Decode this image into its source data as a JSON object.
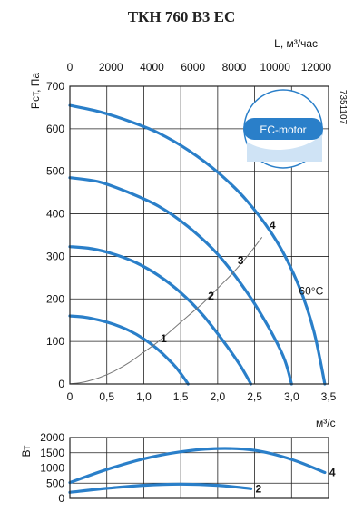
{
  "title": "ТКН 760 В3 ЕС",
  "code": "7351107",
  "badge": {
    "text": "EC-motor",
    "color": "#2a7fc9"
  },
  "chart_data": [
    {
      "type": "line",
      "title": "ТКН 760 В3 ЕС",
      "xlabel": "м³/с",
      "xlim": [
        0,
        3.5
      ],
      "xticks": [
        "0",
        "0,5",
        "1,0",
        "1,5",
        "2,0",
        "2,5",
        "3,0",
        "3,5"
      ],
      "secondary_xlabel": "L, м³/час",
      "secondary_xlim": [
        0,
        12600
      ],
      "secondary_xticks": [
        "0",
        "2000",
        "4000",
        "6000",
        "8000",
        "10000",
        "12000"
      ],
      "ylabel": "Pст, Па",
      "ylim": [
        0,
        700
      ],
      "yticks": [
        "0",
        "100",
        "200",
        "300",
        "400",
        "500",
        "600",
        "700"
      ],
      "grid": true,
      "series": [
        {
          "name": "1",
          "color": "#2a7fc9",
          "x": [
            0,
            0.2,
            0.4,
            0.6,
            0.8,
            1.0,
            1.2,
            1.4,
            1.5,
            1.6
          ],
          "y": [
            160,
            157,
            150,
            140,
            126,
            106,
            80,
            46,
            25,
            0
          ]
        },
        {
          "name": "2",
          "color": "#2a7fc9",
          "x": [
            0,
            0.3,
            0.6,
            0.9,
            1.2,
            1.5,
            1.8,
            2.1,
            2.3,
            2.45
          ],
          "y": [
            323,
            318,
            305,
            285,
            255,
            215,
            162,
            95,
            45,
            0
          ]
        },
        {
          "name": "3",
          "color": "#2a7fc9",
          "x": [
            0,
            0.4,
            0.8,
            1.2,
            1.6,
            2.0,
            2.4,
            2.7,
            2.9,
            3.0
          ],
          "y": [
            485,
            475,
            450,
            418,
            370,
            305,
            215,
            130,
            60,
            0
          ]
        },
        {
          "name": "4",
          "color": "#2a7fc9",
          "x": [
            0,
            0.4,
            0.8,
            1.2,
            1.6,
            2.0,
            2.4,
            2.8,
            3.1,
            3.3,
            3.45
          ],
          "y": [
            655,
            640,
            618,
            590,
            550,
            498,
            430,
            335,
            230,
            125,
            0
          ]
        },
        {
          "name": "",
          "color": "#777777",
          "x": [
            0,
            0.2,
            0.4,
            0.6,
            0.8,
            1.0,
            1.2,
            1.4,
            1.6,
            1.8,
            2.0,
            2.2,
            2.4,
            2.6
          ],
          "y": [
            0,
            5,
            15,
            30,
            50,
            75,
            100,
            130,
            160,
            190,
            225,
            260,
            300,
            345
          ]
        }
      ],
      "annotations": [
        {
          "text": "1",
          "x": 1.23,
          "y": 98
        },
        {
          "text": "2",
          "x": 1.87,
          "y": 198
        },
        {
          "text": "3",
          "x": 2.27,
          "y": 282
        },
        {
          "text": "4",
          "x": 2.7,
          "y": 365
        },
        {
          "text": "60°C",
          "x": 3.1,
          "y": 210
        }
      ]
    },
    {
      "type": "line",
      "xlim": [
        0,
        3.5
      ],
      "ylabel": "Вт",
      "ylim": [
        0,
        2000
      ],
      "yticks": [
        "0",
        "500",
        "1000",
        "1500",
        "2000"
      ],
      "grid": true,
      "series": [
        {
          "name": "4",
          "color": "#2a7fc9",
          "x": [
            0,
            0.5,
            1.0,
            1.5,
            2.0,
            2.5,
            3.0,
            3.45
          ],
          "y": [
            520,
            950,
            1300,
            1530,
            1640,
            1580,
            1280,
            850
          ]
        },
        {
          "name": "2",
          "color": "#2a7fc9",
          "x": [
            0,
            0.5,
            1.0,
            1.5,
            2.0,
            2.45
          ],
          "y": [
            200,
            330,
            430,
            470,
            430,
            320
          ]
        }
      ]
    }
  ]
}
